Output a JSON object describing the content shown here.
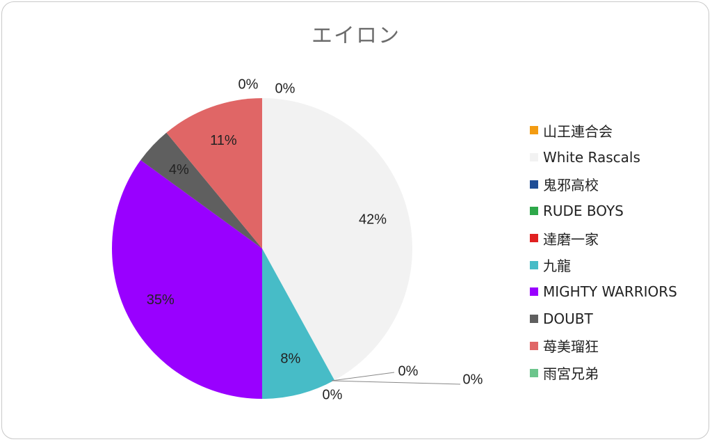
{
  "chart_data": {
    "type": "pie",
    "title": "エイロン",
    "legend_position": "right",
    "slices": [
      {
        "label": "山王連合会",
        "value": 0,
        "color": "#f39c12"
      },
      {
        "label": "White Rascals",
        "value": 42,
        "color": "#f2f2f2"
      },
      {
        "label": "鬼邪高校",
        "value": 0,
        "color": "#1f4e96"
      },
      {
        "label": "RUDE BOYS",
        "value": 0,
        "color": "#2ea84a"
      },
      {
        "label": "達磨一家",
        "value": 0,
        "color": "#e02020"
      },
      {
        "label": "九龍",
        "value": 8,
        "color": "#47bcc7"
      },
      {
        "label": "MIGHTY WARRIORS",
        "value": 35,
        "color": "#9900ff"
      },
      {
        "label": "DOUBT",
        "value": 4,
        "color": "#5f5f5f"
      },
      {
        "label": "苺美瑠狂",
        "value": 11,
        "color": "#e06666"
      },
      {
        "label": "雨宮兄弟",
        "value": 0,
        "color": "#6cc58c"
      }
    ],
    "data_labels": [
      "0%",
      "42%",
      "0%",
      "0%",
      "0%",
      "8%",
      "35%",
      "4%",
      "11%",
      "0%"
    ]
  }
}
